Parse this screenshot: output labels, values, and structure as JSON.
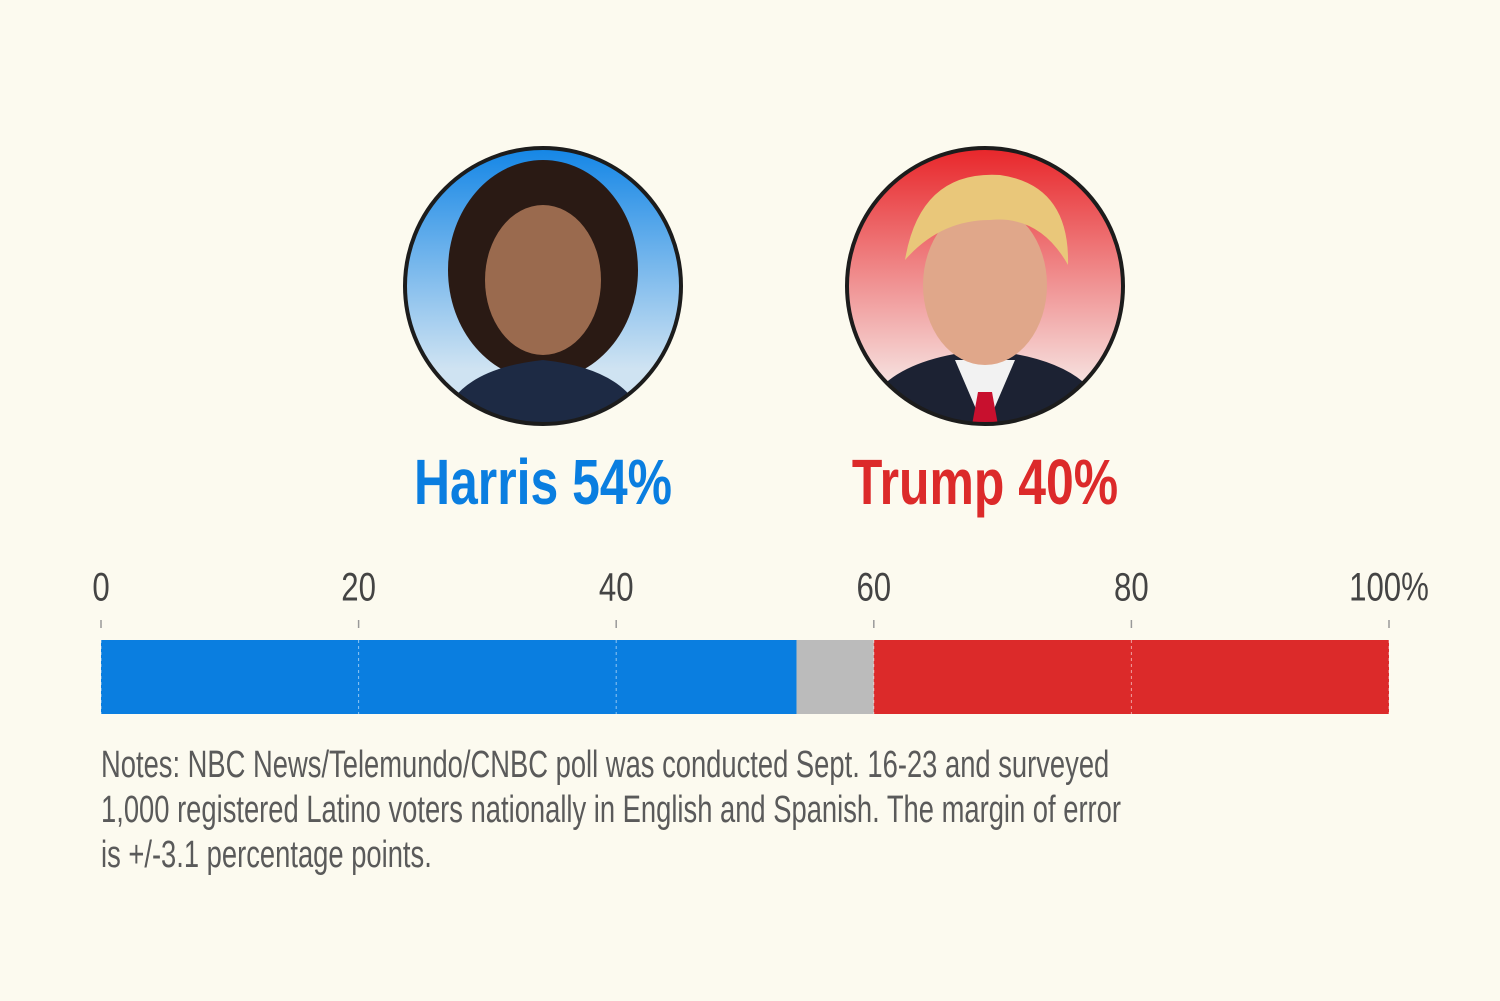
{
  "chart_data": {
    "type": "stacked-bar",
    "series": [
      {
        "name": "Harris",
        "color": "#0a7ee0",
        "values": [
          54
        ],
        "value_labels": [
          "Harris 54%"
        ]
      },
      {
        "color": "#bbbbbb",
        "values": [
          6
        ]
      },
      {
        "name": "Trump",
        "color": "#dc2a2a",
        "values": [
          40
        ],
        "value_labels": [
          "Trump 40%"
        ]
      }
    ],
    "xlim": [
      0,
      100
    ],
    "xticks": [
      0,
      20,
      40,
      60,
      80,
      {
        "value": 100,
        "label": "100%"
      }
    ],
    "grid": true,
    "notes": [
      "Notes: NBC News/Telemundo/CNBC poll was conducted Sept. 16-23 and surveyed",
      "1,000 registered Latino voters nationally in English and Spanish. The margin of error",
      "is +/-3.1 percentage points."
    ]
  }
}
